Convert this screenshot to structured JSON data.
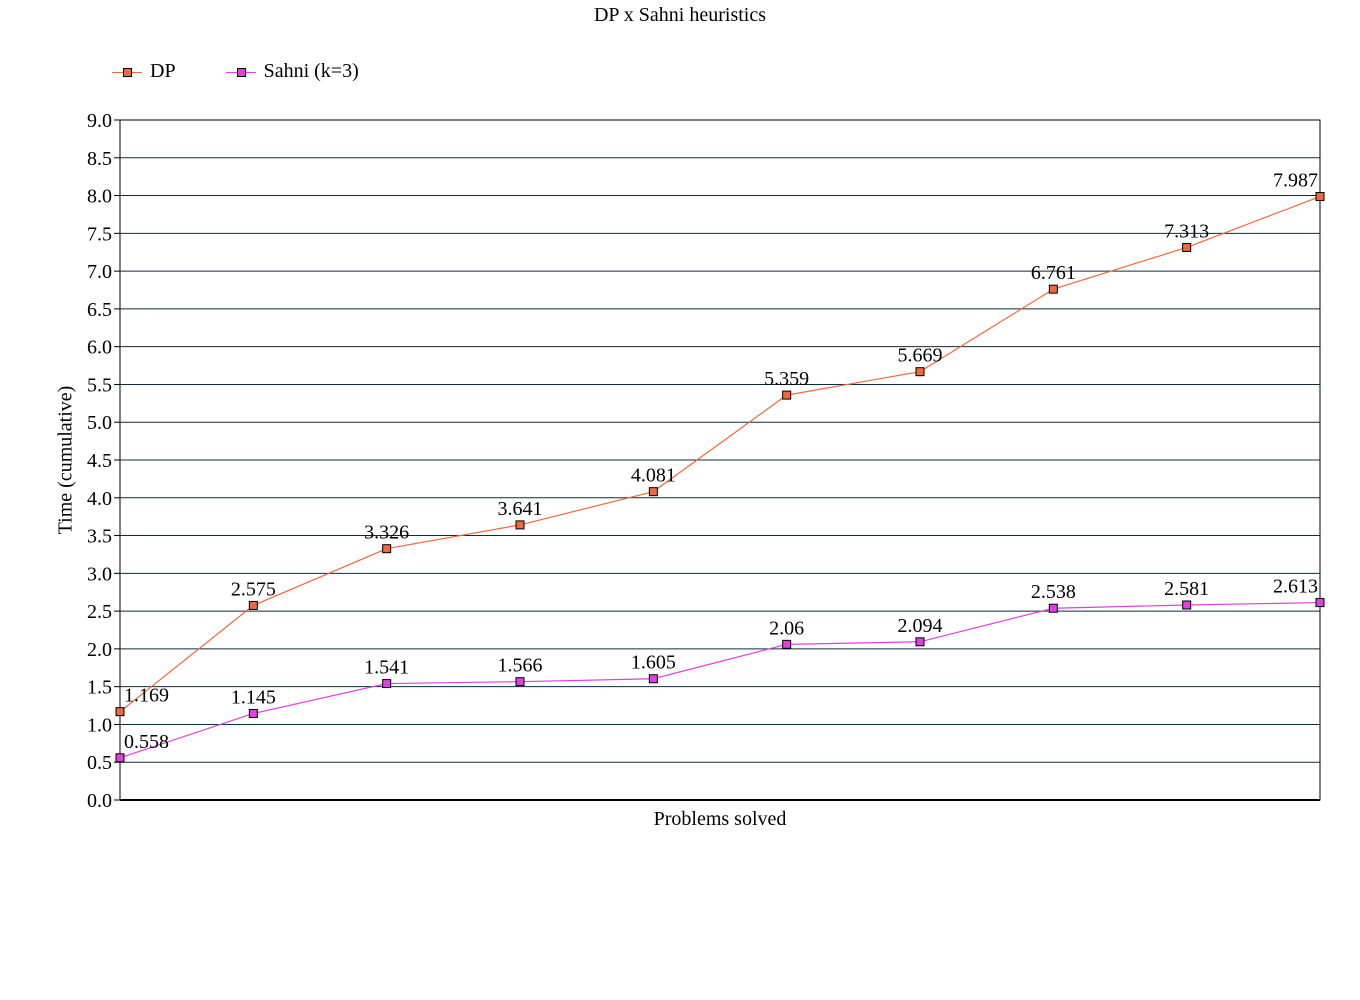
{
  "chart_data": {
    "type": "line",
    "title": "DP x Sahni heuristics",
    "xlabel": "Problems solved",
    "ylabel": "Time (cumulative)",
    "ylim": [
      0,
      9
    ],
    "ytick_step": 0.5,
    "grid": true,
    "legend": "top-left",
    "x": [
      1,
      2,
      3,
      4,
      5,
      6,
      7,
      8,
      9,
      10
    ],
    "series": [
      {
        "name": "DP",
        "color": "#f2683e",
        "values": [
          1.169,
          2.575,
          3.326,
          3.641,
          4.081,
          5.359,
          5.669,
          6.761,
          7.313,
          7.987
        ],
        "labels": [
          "1.169",
          "2.575",
          "3.326",
          "3.641",
          "4.081",
          "5.359",
          "5.669",
          "6.761",
          "7.313",
          "7.987"
        ]
      },
      {
        "name": "Sahni (k=3)",
        "color": "#e040e0",
        "values": [
          0.558,
          1.145,
          1.541,
          1.566,
          1.605,
          2.06,
          2.094,
          2.538,
          2.581,
          2.613
        ],
        "labels": [
          "0.558",
          "1.145",
          "1.541",
          "1.566",
          "1.605",
          "2.06",
          "2.094",
          "2.538",
          "2.581",
          "2.613"
        ]
      }
    ]
  }
}
